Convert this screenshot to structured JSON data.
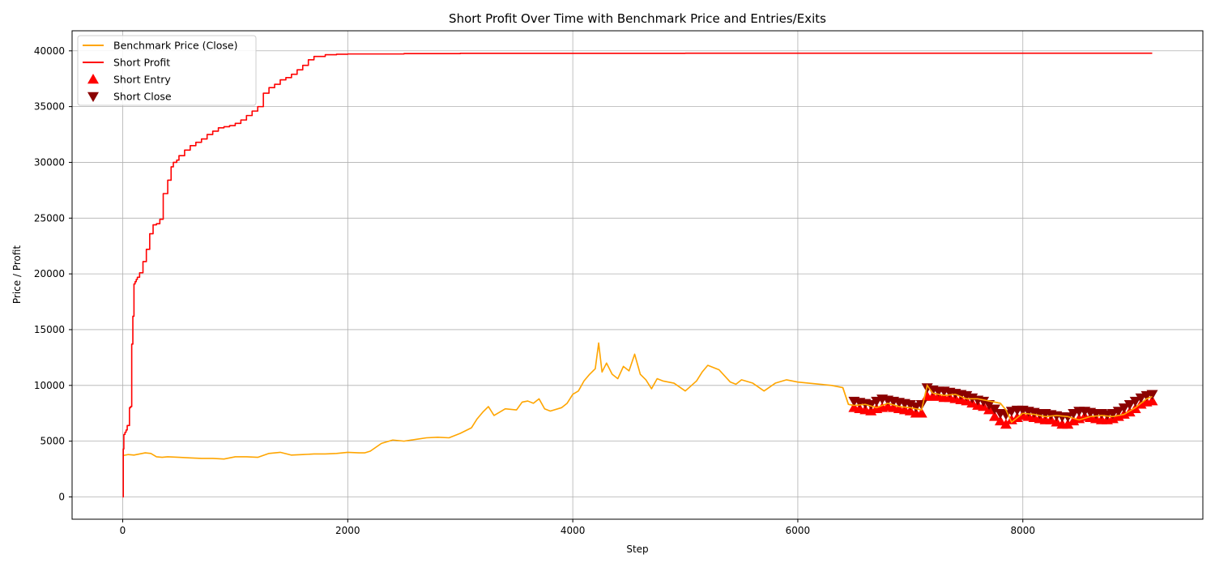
{
  "chart_data": {
    "type": "line",
    "title": "Short Profit Over Time with Benchmark Price and Entries/Exits",
    "xlabel": "Step",
    "ylabel": "Price / Profit",
    "xlim": [
      -450,
      9600
    ],
    "ylim": [
      -2000,
      41800
    ],
    "x_ticks": [
      0,
      2000,
      4000,
      6000,
      8000
    ],
    "y_ticks": [
      0,
      5000,
      10000,
      15000,
      20000,
      25000,
      30000,
      35000,
      40000
    ],
    "grid": true,
    "legend_position": "upper-left",
    "legend": [
      {
        "label": "Benchmark Price (Close)",
        "kind": "line",
        "color": "#ffa500"
      },
      {
        "label": "Short Profit",
        "kind": "line",
        "color": "#ff0000"
      },
      {
        "label": "Short Entry",
        "kind": "triangle-up",
        "color": "#ff0000"
      },
      {
        "label": "Short Close",
        "kind": "triangle-down",
        "color": "#8b0000"
      }
    ],
    "series": [
      {
        "name": "Benchmark Price (Close)",
        "color": "#ffa500",
        "step": false,
        "x": [
          0,
          50,
          100,
          150,
          200,
          250,
          300,
          350,
          400,
          500,
          600,
          700,
          800,
          900,
          1000,
          1100,
          1200,
          1300,
          1400,
          1500,
          1600,
          1700,
          1800,
          1900,
          2000,
          2100,
          2150,
          2200,
          2300,
          2400,
          2500,
          2600,
          2700,
          2800,
          2900,
          3000,
          3100,
          3150,
          3200,
          3250,
          3300,
          3400,
          3500,
          3550,
          3600,
          3650,
          3700,
          3750,
          3800,
          3900,
          3950,
          4000,
          4050,
          4100,
          4150,
          4200,
          4230,
          4260,
          4300,
          4350,
          4400,
          4450,
          4500,
          4550,
          4600,
          4650,
          4700,
          4750,
          4800,
          4900,
          5000,
          5100,
          5150,
          5200,
          5300,
          5400,
          5450,
          5500,
          5600,
          5700,
          5800,
          5900,
          6000,
          6100,
          6200,
          6300,
          6350,
          6400,
          6450,
          6500,
          6600,
          6700,
          6800,
          6900,
          7000,
          7100,
          7150,
          7200,
          7300,
          7400,
          7500,
          7600,
          7700,
          7800,
          7850,
          7900,
          8000,
          8100,
          8200,
          8300,
          8400,
          8500,
          8600,
          8700,
          8800,
          8900,
          9000,
          9100,
          9150
        ],
        "values": [
          3700,
          3800,
          3750,
          3850,
          3950,
          3900,
          3600,
          3550,
          3600,
          3550,
          3500,
          3450,
          3450,
          3400,
          3600,
          3600,
          3550,
          3900,
          4000,
          3750,
          3800,
          3850,
          3850,
          3900,
          4000,
          3950,
          3950,
          4100,
          4800,
          5100,
          5000,
          5150,
          5300,
          5350,
          5300,
          5700,
          6200,
          7000,
          7600,
          8100,
          7300,
          7900,
          7800,
          8500,
          8600,
          8400,
          8800,
          7900,
          7700,
          8000,
          8400,
          9200,
          9500,
          10400,
          11000,
          11500,
          13800,
          11200,
          12000,
          11000,
          10600,
          11700,
          11300,
          12800,
          11000,
          10500,
          9700,
          10600,
          10400,
          10200,
          9500,
          10400,
          11200,
          11800,
          11400,
          10300,
          10100,
          10500,
          10200,
          9500,
          10200,
          10500,
          10300,
          10200,
          10100,
          10000,
          9900,
          9800,
          8300,
          8200,
          8300,
          8000,
          8400,
          8100,
          8000,
          7800,
          10000,
          9300,
          9100,
          9200,
          8800,
          8800,
          8600,
          8400,
          7800,
          6700,
          7500,
          7400,
          7200,
          7300,
          7200,
          6900,
          7200,
          7300,
          7200,
          7400,
          8000,
          8800,
          9000
        ]
      },
      {
        "name": "Short Profit",
        "color": "#ff0000",
        "step": true,
        "x": [
          0,
          5,
          10,
          20,
          30,
          40,
          60,
          70,
          80,
          90,
          100,
          110,
          120,
          130,
          150,
          180,
          210,
          240,
          270,
          300,
          330,
          360,
          400,
          430,
          450,
          480,
          500,
          550,
          600,
          650,
          700,
          750,
          800,
          850,
          900,
          950,
          1000,
          1050,
          1100,
          1150,
          1200,
          1250,
          1300,
          1350,
          1400,
          1450,
          1500,
          1550,
          1600,
          1650,
          1700,
          1800,
          1900,
          2000,
          2500,
          3000,
          4000,
          5000,
          6000,
          7000,
          8000,
          9000,
          9150
        ],
        "values": [
          0,
          4300,
          5600,
          5800,
          6000,
          6400,
          8000,
          8100,
          13700,
          16200,
          19100,
          19300,
          19500,
          19700,
          20100,
          21100,
          22200,
          23600,
          24400,
          24500,
          24900,
          27200,
          28400,
          29600,
          30000,
          30200,
          30600,
          31100,
          31500,
          31800,
          32100,
          32500,
          32800,
          33100,
          33200,
          33300,
          33500,
          33800,
          34200,
          34600,
          35000,
          36200,
          36700,
          37000,
          37400,
          37600,
          37900,
          38300,
          38700,
          39200,
          39500,
          39650,
          39700,
          39720,
          39750,
          39780,
          39780,
          39790,
          39790,
          39790,
          39790,
          39790,
          39790
        ]
      }
    ],
    "markers": {
      "short_entry": {
        "color": "#ff0000",
        "x": [
          6500,
          6550,
          6600,
          6650,
          6700,
          6750,
          6800,
          6850,
          6900,
          6950,
          7000,
          7050,
          7100,
          7150,
          7200,
          7250,
          7300,
          7350,
          7400,
          7450,
          7500,
          7550,
          7600,
          7650,
          7700,
          7750,
          7800,
          7850,
          7900,
          7950,
          8000,
          8050,
          8100,
          8150,
          8200,
          8250,
          8300,
          8350,
          8400,
          8450,
          8500,
          8550,
          8600,
          8650,
          8700,
          8750,
          8800,
          8850,
          8900,
          8950,
          9000,
          9050,
          9100,
          9150
        ],
        "values": [
          8000,
          7900,
          7800,
          7700,
          7900,
          8000,
          8100,
          8000,
          7900,
          7800,
          7700,
          7500,
          7500,
          9000,
          9000,
          9000,
          8900,
          8900,
          8800,
          8700,
          8600,
          8400,
          8200,
          8100,
          7800,
          7200,
          6800,
          6500,
          6900,
          7100,
          7300,
          7200,
          7100,
          7000,
          6900,
          6900,
          6700,
          6500,
          6500,
          6800,
          7000,
          7200,
          7100,
          7000,
          6900,
          6900,
          7000,
          7200,
          7400,
          7600,
          7900,
          8300,
          8500,
          8600
        ]
      },
      "short_close": {
        "color": "#8b0000",
        "x": [
          6500,
          6550,
          6600,
          6650,
          6700,
          6750,
          6800,
          6850,
          6900,
          6950,
          7000,
          7050,
          7100,
          7150,
          7200,
          7250,
          7300,
          7350,
          7400,
          7450,
          7500,
          7550,
          7600,
          7650,
          7700,
          7750,
          7800,
          7850,
          7900,
          7950,
          8000,
          8050,
          8100,
          8150,
          8200,
          8250,
          8300,
          8350,
          8400,
          8450,
          8500,
          8550,
          8600,
          8650,
          8700,
          8750,
          8800,
          8850,
          8900,
          8950,
          9000,
          9050,
          9100,
          9150
        ],
        "values": [
          8600,
          8500,
          8400,
          8300,
          8600,
          8800,
          8700,
          8600,
          8500,
          8400,
          8300,
          8100,
          8300,
          9800,
          9600,
          9500,
          9500,
          9400,
          9300,
          9200,
          9100,
          8900,
          8700,
          8600,
          8300,
          7900,
          7500,
          7400,
          7700,
          7800,
          7800,
          7700,
          7600,
          7500,
          7500,
          7400,
          7300,
          7200,
          7200,
          7500,
          7700,
          7700,
          7600,
          7500,
          7500,
          7400,
          7500,
          7700,
          8000,
          8300,
          8600,
          8900,
          9100,
          9200
        ]
      }
    }
  }
}
